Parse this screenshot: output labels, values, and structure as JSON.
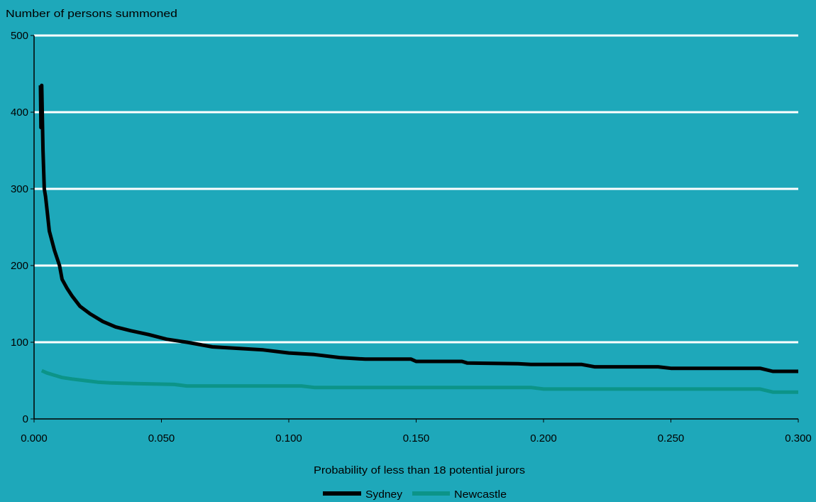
{
  "chart_data": {
    "type": "line",
    "title": "",
    "ylabel": "Number of persons summoned",
    "xlabel": "Probability of less than 18 potential jurors",
    "xlim": [
      0,
      0.3
    ],
    "ylim": [
      0,
      500
    ],
    "x_ticks": [
      "0.000",
      "0.050",
      "0.100",
      "0.150",
      "0.200",
      "0.250",
      "0.300"
    ],
    "y_ticks": [
      "0",
      "100",
      "200",
      "300",
      "400",
      "500"
    ],
    "grid": "horizontal",
    "legend_position": "bottom",
    "colors": {
      "background": "#1ea8ba",
      "grid": "#ffffff",
      "axis": "#000000"
    },
    "series": [
      {
        "name": "Sydney",
        "color": "#000000",
        "points": [
          [
            0.0025,
            435
          ],
          [
            0.0027,
            380
          ],
          [
            0.003,
            435
          ],
          [
            0.0035,
            350
          ],
          [
            0.004,
            300
          ],
          [
            0.0045,
            290
          ],
          [
            0.005,
            275
          ],
          [
            0.006,
            245
          ],
          [
            0.008,
            220
          ],
          [
            0.01,
            200
          ],
          [
            0.011,
            182
          ],
          [
            0.013,
            170
          ],
          [
            0.015,
            160
          ],
          [
            0.018,
            147
          ],
          [
            0.022,
            137
          ],
          [
            0.027,
            127
          ],
          [
            0.032,
            120
          ],
          [
            0.038,
            115
          ],
          [
            0.045,
            110
          ],
          [
            0.052,
            104
          ],
          [
            0.06,
            100
          ],
          [
            0.07,
            94
          ],
          [
            0.08,
            92
          ],
          [
            0.09,
            90
          ],
          [
            0.1,
            86
          ],
          [
            0.11,
            84
          ],
          [
            0.12,
            80
          ],
          [
            0.13,
            78
          ],
          [
            0.148,
            78
          ],
          [
            0.15,
            75
          ],
          [
            0.168,
            75
          ],
          [
            0.17,
            73
          ],
          [
            0.19,
            72
          ],
          [
            0.195,
            71
          ],
          [
            0.215,
            71
          ],
          [
            0.22,
            68
          ],
          [
            0.245,
            68
          ],
          [
            0.25,
            66
          ],
          [
            0.285,
            66
          ],
          [
            0.29,
            62
          ],
          [
            0.3,
            62
          ]
        ]
      },
      {
        "name": "Newcastle",
        "color": "#0c9488",
        "points": [
          [
            0.003,
            63
          ],
          [
            0.005,
            60
          ],
          [
            0.007,
            58
          ],
          [
            0.009,
            56
          ],
          [
            0.011,
            54
          ],
          [
            0.015,
            52
          ],
          [
            0.02,
            50
          ],
          [
            0.025,
            48
          ],
          [
            0.03,
            47
          ],
          [
            0.04,
            46
          ],
          [
            0.055,
            45
          ],
          [
            0.06,
            43
          ],
          [
            0.105,
            43
          ],
          [
            0.11,
            41
          ],
          [
            0.195,
            41
          ],
          [
            0.2,
            39
          ],
          [
            0.285,
            39
          ],
          [
            0.29,
            35
          ],
          [
            0.3,
            35
          ]
        ]
      }
    ]
  }
}
